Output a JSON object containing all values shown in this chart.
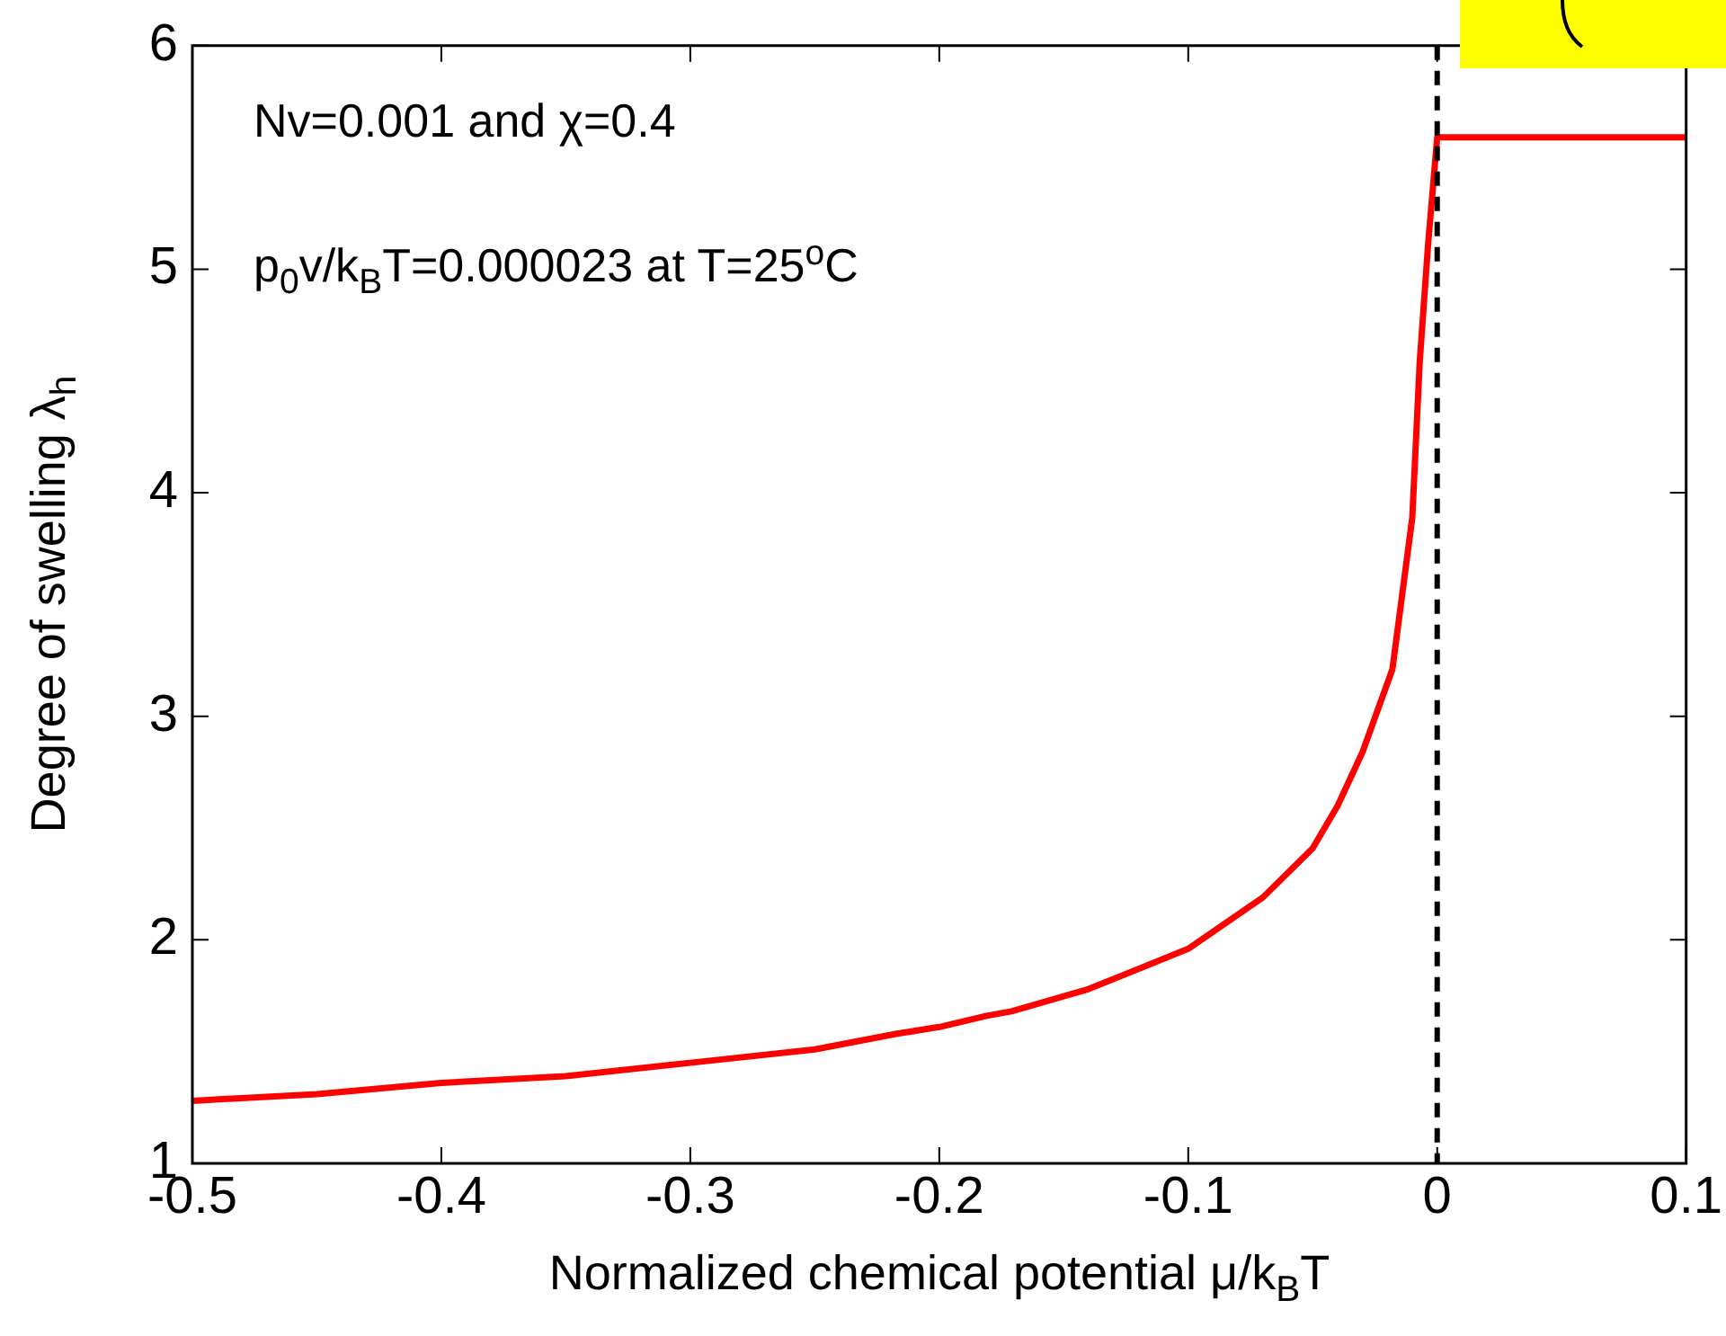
{
  "chart_data": {
    "type": "line",
    "xlabel": "Normalized chemical potential μ/k$_{B}$T",
    "ylabel": "Degree of swelling λ$_{h}$",
    "annotations": [
      "Nv=0.001 and χ=0.4",
      "p$_{0}$v/k$_{B}$T=0.000023 at T=25$^{o}$C"
    ],
    "series": [
      {
        "color": "#ff0000",
        "x": [
          -0.5,
          -0.45,
          -0.4,
          -0.35,
          -0.3,
          -0.25,
          -0.217,
          -0.2,
          -0.181,
          -0.171,
          -0.14,
          -0.1,
          -0.07,
          -0.05,
          -0.04,
          -0.03,
          -0.018,
          -0.01,
          -0.007,
          -0.0036,
          0,
          0.1
        ],
        "values": [
          1.28,
          1.31,
          1.36,
          1.39,
          1.45,
          1.51,
          1.58,
          1.61,
          1.66,
          1.68,
          1.78,
          1.96,
          2.19,
          2.41,
          2.6,
          2.84,
          3.21,
          3.89,
          4.59,
          5.12,
          5.59,
          5.59
        ]
      }
    ],
    "xlim": [
      -0.5,
      0.1
    ],
    "xticks": [
      -0.5,
      -0.4,
      -0.3,
      -0.2,
      -0.1,
      0,
      0.1
    ],
    "ylim": [
      1,
      6
    ],
    "yticks": [
      1,
      2,
      3,
      4,
      5,
      6
    ],
    "ref_lines": [
      {
        "axis": "x",
        "value": 0,
        "color": "#000000",
        "line_style": "dashed"
      }
    ],
    "grid": false,
    "legend": false,
    "marker": "none",
    "line_style": "solid"
  }
}
